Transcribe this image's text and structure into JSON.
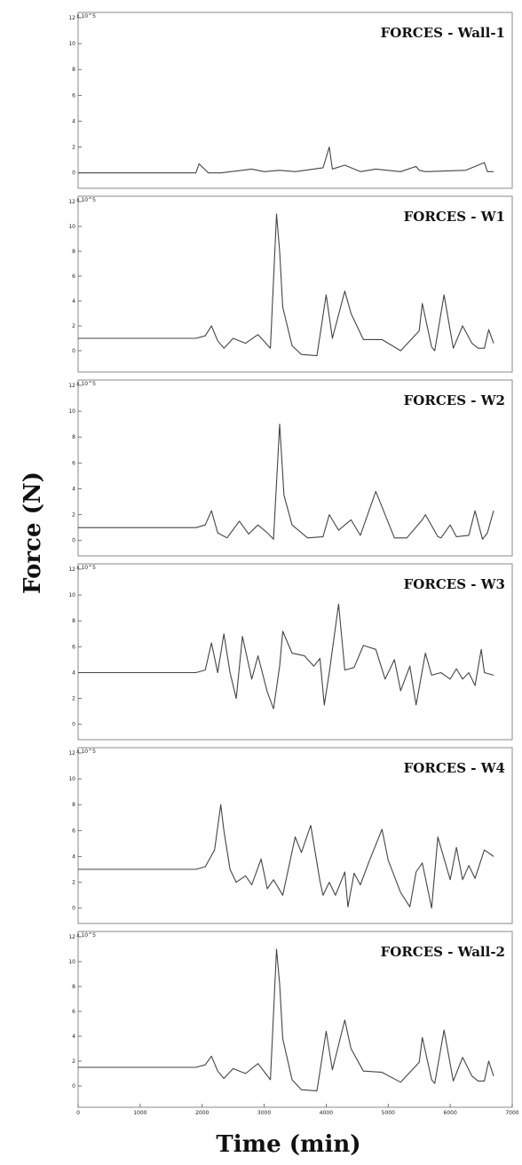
{
  "figure": {
    "ylabel": "Force (N)",
    "xlabel": "Time (min)"
  },
  "colors": {
    "line": "#444444",
    "frame": "#888888"
  },
  "chart_data": [
    {
      "type": "line",
      "title": "FORCES - Wall-1",
      "y_exponent_label": "x 10^5",
      "ylim": [
        -0.5,
        12
      ],
      "yticks": [
        0,
        2,
        4,
        6,
        8,
        10,
        12
      ],
      "x": [
        0,
        1900,
        1950,
        2100,
        2300,
        2800,
        3000,
        3250,
        3500,
        3950,
        4050,
        4100,
        4300,
        4550,
        4800,
        5200,
        5450,
        5500,
        5600,
        6250,
        6550,
        6600,
        6700
      ],
      "series": [
        {
          "values": [
            0,
            0,
            0.7,
            0,
            0,
            0.3,
            0.1,
            0.2,
            0.1,
            0.4,
            2,
            0.3,
            0.6,
            0.1,
            0.3,
            0.1,
            0.5,
            0.2,
            0.1,
            0.2,
            0.8,
            0.1,
            0.1
          ]
        }
      ]
    },
    {
      "type": "line",
      "title": "FORCES - W1",
      "y_exponent_label": "x 10^5",
      "ylim": [
        -1,
        12
      ],
      "yticks": [
        0,
        2,
        4,
        6,
        8,
        10,
        12
      ],
      "x": [
        0,
        1900,
        2050,
        2150,
        2250,
        2350,
        2500,
        2700,
        2900,
        3100,
        3200,
        3250,
        3300,
        3450,
        3600,
        3850,
        4000,
        4100,
        4300,
        4400,
        4600,
        4900,
        5200,
        5500,
        5550,
        5700,
        5750,
        5900,
        6050,
        6200,
        6350,
        6450,
        6550,
        6620,
        6700
      ],
      "series": [
        {
          "values": [
            1,
            1,
            1.2,
            2,
            0.8,
            0.2,
            1,
            0.6,
            1.3,
            0.2,
            11,
            8,
            3.5,
            0.4,
            -0.3,
            -0.4,
            4.5,
            1,
            4.8,
            3,
            0.9,
            0.9,
            0,
            1.6,
            3.8,
            0.3,
            0,
            4.5,
            0.2,
            2,
            0.6,
            0.2,
            0.2,
            1.7,
            0.6
          ]
        }
      ]
    },
    {
      "type": "line",
      "title": "FORCES - W2",
      "y_exponent_label": "x 10^5",
      "ylim": [
        -0.5,
        12
      ],
      "yticks": [
        0,
        2,
        4,
        6,
        8,
        10,
        12
      ],
      "x": [
        0,
        1900,
        2050,
        2150,
        2250,
        2400,
        2600,
        2750,
        2900,
        3050,
        3150,
        3250,
        3320,
        3450,
        3700,
        3950,
        4050,
        4200,
        4400,
        4550,
        4800,
        5100,
        5300,
        5550,
        5600,
        5800,
        5850,
        6000,
        6100,
        6300,
        6400,
        6520,
        6600,
        6700
      ],
      "series": [
        {
          "values": [
            1,
            1,
            1.2,
            2.3,
            0.6,
            0.2,
            1.5,
            0.5,
            1.2,
            0.6,
            0.1,
            9,
            3.5,
            1.2,
            0.2,
            0.3,
            2,
            0.8,
            1.6,
            0.4,
            3.8,
            0.2,
            0.2,
            1.6,
            2,
            0.3,
            0.2,
            1.2,
            0.3,
            0.4,
            2.3,
            0.1,
            0.6,
            2.3
          ]
        }
      ]
    },
    {
      "type": "line",
      "title": "FORCES - W3",
      "y_exponent_label": "x 10^5",
      "ylim": [
        -0.5,
        12
      ],
      "yticks": [
        0,
        2,
        4,
        6,
        8,
        10,
        12
      ],
      "x": [
        0,
        1900,
        2050,
        2150,
        2250,
        2350,
        2450,
        2550,
        2650,
        2800,
        2900,
        3050,
        3150,
        3250,
        3300,
        3450,
        3650,
        3800,
        3900,
        3970,
        4050,
        4200,
        4300,
        4450,
        4600,
        4800,
        4950,
        5100,
        5200,
        5350,
        5450,
        5600,
        5700,
        5850,
        6000,
        6100,
        6200,
        6300,
        6400,
        6500,
        6550,
        6700
      ],
      "series": [
        {
          "values": [
            4,
            4,
            4.2,
            6.3,
            4,
            7,
            4,
            2,
            6.8,
            3.5,
            5.3,
            2.5,
            1.2,
            4.5,
            7.2,
            5.5,
            5.3,
            4.5,
            5.1,
            1.5,
            4,
            9.3,
            4.2,
            4.4,
            6.1,
            5.8,
            3.5,
            5,
            2.6,
            4.5,
            1.5,
            5.5,
            3.8,
            4,
            3.5,
            4.3,
            3.5,
            4,
            3,
            5.8,
            4,
            3.8
          ]
        }
      ]
    },
    {
      "type": "line",
      "title": "FORCES - W4",
      "y_exponent_label": "x 10^5",
      "ylim": [
        -0.5,
        12
      ],
      "yticks": [
        0,
        2,
        4,
        6,
        8,
        10,
        12
      ],
      "x": [
        0,
        1900,
        2050,
        2200,
        2300,
        2350,
        2450,
        2550,
        2700,
        2800,
        2950,
        3050,
        3150,
        3300,
        3500,
        3600,
        3750,
        3900,
        3950,
        4050,
        4150,
        4300,
        4350,
        4450,
        4550,
        4700,
        4900,
        5000,
        5200,
        5350,
        5450,
        5550,
        5700,
        5800,
        6000,
        6100,
        6200,
        6300,
        6400,
        6550,
        6700
      ],
      "series": [
        {
          "values": [
            3,
            3,
            3.2,
            4.5,
            8,
            6,
            3,
            2,
            2.5,
            1.8,
            3.8,
            1.5,
            2.2,
            1,
            5.5,
            4.3,
            6.4,
            2.1,
            1,
            2,
            1,
            2.8,
            0.1,
            2.7,
            1.8,
            3.7,
            6.1,
            3.7,
            1.2,
            0.1,
            2.8,
            3.5,
            0,
            5.5,
            2.2,
            4.7,
            2.2,
            3.3,
            2.3,
            4.5,
            4
          ]
        }
      ]
    },
    {
      "type": "line",
      "title": "FORCES - Wall-2",
      "y_exponent_label": "x 10^5",
      "ylim": [
        -1,
        12
      ],
      "yticks": [
        0,
        2,
        4,
        6,
        8,
        10,
        12
      ],
      "x": [
        0,
        1900,
        2050,
        2150,
        2250,
        2350,
        2500,
        2700,
        2900,
        3100,
        3200,
        3250,
        3300,
        3450,
        3600,
        3850,
        4000,
        4100,
        4300,
        4400,
        4600,
        4900,
        5200,
        5500,
        5550,
        5700,
        5750,
        5900,
        6050,
        6200,
        6350,
        6450,
        6550,
        6620,
        6700
      ],
      "series": [
        {
          "values": [
            1.5,
            1.5,
            1.7,
            2.4,
            1.2,
            0.6,
            1.4,
            1,
            1.8,
            0.5,
            11,
            8.2,
            3.8,
            0.5,
            -0.3,
            -0.4,
            4.4,
            1.3,
            5.3,
            3,
            1.2,
            1.1,
            0.3,
            1.9,
            3.9,
            0.5,
            0.2,
            4.5,
            0.4,
            2.3,
            0.8,
            0.4,
            0.4,
            2,
            0.8
          ]
        }
      ]
    }
  ],
  "x_axis": {
    "xlim": [
      0,
      7000
    ],
    "ticks": [
      0,
      1000,
      2000,
      3000,
      4000,
      5000,
      6000,
      7000
    ]
  }
}
